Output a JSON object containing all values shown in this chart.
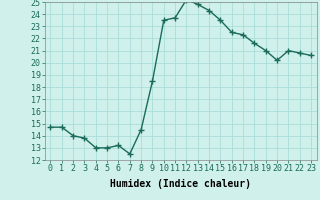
{
  "xlabel": "Humidex (Indice chaleur)",
  "x": [
    0,
    1,
    2,
    3,
    4,
    5,
    6,
    7,
    8,
    9,
    10,
    11,
    12,
    13,
    14,
    15,
    16,
    17,
    18,
    19,
    20,
    21,
    22,
    23
  ],
  "y": [
    14.7,
    14.7,
    14.0,
    13.8,
    13.0,
    13.0,
    13.2,
    12.5,
    14.5,
    18.5,
    23.5,
    23.7,
    25.2,
    24.8,
    24.3,
    23.5,
    22.5,
    22.3,
    21.6,
    21.0,
    20.2,
    21.0,
    20.8,
    20.6
  ],
  "line_color": "#1a6b5a",
  "marker": "+",
  "marker_size": 4,
  "bg_color": "#cff0eb",
  "grid_color": "#aaddda",
  "ylim": [
    12,
    25
  ],
  "yticks": [
    12,
    13,
    14,
    15,
    16,
    17,
    18,
    19,
    20,
    21,
    22,
    23,
    24,
    25
  ],
  "xticks": [
    0,
    1,
    2,
    3,
    4,
    5,
    6,
    7,
    8,
    9,
    10,
    11,
    12,
    13,
    14,
    15,
    16,
    17,
    18,
    19,
    20,
    21,
    22,
    23
  ],
  "xlabel_fontsize": 7,
  "tick_fontsize": 6,
  "line_width": 1.0
}
